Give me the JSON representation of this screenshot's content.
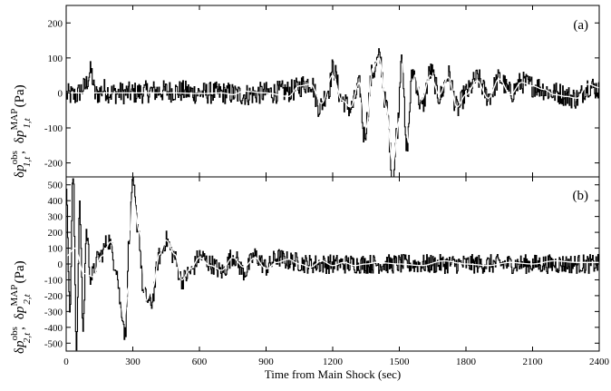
{
  "chart_data": [
    {
      "type": "line",
      "panel_label": "(a)",
      "ylabel_parts": {
        "delta": "δ",
        "p": "p",
        "sup_obs": "obs",
        "sub_obs": "1,t",
        "comma": ",",
        "sup_map": "MAP",
        "sub_map": "1,t",
        "unit": "(Pa)"
      },
      "ylim": [
        -240,
        250
      ],
      "yticks": [
        -200,
        -100,
        0,
        100,
        200
      ],
      "xlim": [
        0,
        2400
      ],
      "series": [
        {
          "role": "observed (black, noisy)",
          "color": "#000000",
          "points": [
            [
              0,
              -5
            ],
            [
              40,
              -8
            ],
            [
              80,
              15
            ],
            [
              110,
              60
            ],
            [
              130,
              -5
            ],
            [
              170,
              10
            ],
            [
              200,
              0
            ],
            [
              300,
              0
            ],
            [
              400,
              5
            ],
            [
              500,
              5
            ],
            [
              600,
              0
            ],
            [
              700,
              0
            ],
            [
              800,
              -5
            ],
            [
              900,
              0
            ],
            [
              1000,
              5
            ],
            [
              1100,
              30
            ],
            [
              1140,
              -40
            ],
            [
              1180,
              10
            ],
            [
              1200,
              70
            ],
            [
              1240,
              -20
            ],
            [
              1280,
              -45
            ],
            [
              1320,
              20
            ],
            [
              1340,
              -120
            ],
            [
              1380,
              60
            ],
            [
              1410,
              100
            ],
            [
              1440,
              -40
            ],
            [
              1470,
              -240
            ],
            [
              1490,
              -100
            ],
            [
              1510,
              120
            ],
            [
              1530,
              -160
            ],
            [
              1560,
              60
            ],
            [
              1600,
              -40
            ],
            [
              1640,
              60
            ],
            [
              1680,
              -10
            ],
            [
              1720,
              50
            ],
            [
              1760,
              -45
            ],
            [
              1800,
              0
            ],
            [
              1850,
              40
            ],
            [
              1900,
              -10
            ],
            [
              1950,
              40
            ],
            [
              2000,
              0
            ],
            [
              2050,
              30
            ],
            [
              2100,
              20
            ],
            [
              2200,
              0
            ],
            [
              2300,
              -15
            ],
            [
              2350,
              20
            ],
            [
              2400,
              10
            ]
          ]
        },
        {
          "role": "MAP estimate (white)",
          "color": "#ffffff",
          "points": [
            [
              0,
              0
            ],
            [
              100,
              0
            ],
            [
              150,
              0
            ],
            [
              200,
              0
            ],
            [
              300,
              0
            ],
            [
              400,
              0
            ],
            [
              500,
              0
            ],
            [
              600,
              -2
            ],
            [
              700,
              0
            ],
            [
              750,
              -5
            ],
            [
              800,
              5
            ],
            [
              900,
              0
            ],
            [
              1000,
              -10
            ],
            [
              1050,
              20
            ],
            [
              1100,
              25
            ],
            [
              1150,
              -30
            ],
            [
              1200,
              50
            ],
            [
              1240,
              -20
            ],
            [
              1280,
              -40
            ],
            [
              1320,
              30
            ],
            [
              1350,
              -100
            ],
            [
              1380,
              70
            ],
            [
              1410,
              100
            ],
            [
              1440,
              -40
            ],
            [
              1470,
              -200
            ],
            [
              1500,
              -80
            ],
            [
              1520,
              110
            ],
            [
              1540,
              -140
            ],
            [
              1570,
              50
            ],
            [
              1600,
              -20
            ],
            [
              1640,
              50
            ],
            [
              1680,
              -5
            ],
            [
              1720,
              45
            ],
            [
              1760,
              -40
            ],
            [
              1800,
              -5
            ],
            [
              1850,
              35
            ],
            [
              1900,
              -15
            ],
            [
              1950,
              40
            ],
            [
              2000,
              -5
            ],
            [
              2050,
              30
            ],
            [
              2100,
              20
            ],
            [
              2150,
              10
            ],
            [
              2200,
              -5
            ],
            [
              2250,
              -10
            ],
            [
              2300,
              -15
            ],
            [
              2350,
              25
            ],
            [
              2400,
              15
            ]
          ]
        }
      ]
    },
    {
      "type": "line",
      "panel_label": "(b)",
      "ylabel_parts": {
        "delta": "δ",
        "p": "p",
        "sup_obs": "obs",
        "sub_obs": "2,t",
        "comma": ",",
        "sup_map": "MAP",
        "sub_map": "2,t",
        "unit": "(Pa)"
      },
      "ylim": [
        -550,
        550
      ],
      "yticks": [
        -500,
        -400,
        -300,
        -200,
        -100,
        0,
        100,
        200,
        300,
        400,
        500
      ],
      "xlim": [
        0,
        2400
      ],
      "series": [
        {
          "role": "observed (black, noisy)",
          "color": "#000000",
          "points": [
            [
              0,
              500
            ],
            [
              15,
              -300
            ],
            [
              30,
              550
            ],
            [
              45,
              -500
            ],
            [
              60,
              350
            ],
            [
              75,
              -400
            ],
            [
              90,
              200
            ],
            [
              110,
              -80
            ],
            [
              150,
              50
            ],
            [
              190,
              150
            ],
            [
              220,
              0
            ],
            [
              250,
              -300
            ],
            [
              265,
              -450
            ],
            [
              280,
              100
            ],
            [
              300,
              500
            ],
            [
              320,
              250
            ],
            [
              350,
              -200
            ],
            [
              380,
              -250
            ],
            [
              420,
              50
            ],
            [
              450,
              150
            ],
            [
              480,
              60
            ],
            [
              520,
              -100
            ],
            [
              560,
              -50
            ],
            [
              600,
              50
            ],
            [
              650,
              0
            ],
            [
              700,
              -50
            ],
            [
              750,
              50
            ],
            [
              800,
              -50
            ],
            [
              850,
              50
            ],
            [
              900,
              -20
            ],
            [
              950,
              40
            ],
            [
              1000,
              20
            ],
            [
              1100,
              0
            ],
            [
              1200,
              0
            ],
            [
              1300,
              0
            ],
            [
              1400,
              0
            ],
            [
              1500,
              0
            ],
            [
              1600,
              0
            ],
            [
              1700,
              0
            ],
            [
              1800,
              0
            ],
            [
              1900,
              0
            ],
            [
              2000,
              0
            ],
            [
              2100,
              0
            ],
            [
              2200,
              0
            ],
            [
              2300,
              0
            ],
            [
              2400,
              0
            ]
          ]
        },
        {
          "role": "MAP estimate (white)",
          "color": "#ffffff",
          "points": [
            [
              0,
              50
            ],
            [
              40,
              100
            ],
            [
              80,
              -60
            ],
            [
              120,
              -80
            ],
            [
              160,
              50
            ],
            [
              200,
              140
            ],
            [
              230,
              60
            ],
            [
              260,
              -350
            ],
            [
              280,
              -150
            ],
            [
              300,
              420
            ],
            [
              330,
              200
            ],
            [
              360,
              -230
            ],
            [
              390,
              -150
            ],
            [
              420,
              60
            ],
            [
              450,
              150
            ],
            [
              490,
              60
            ],
            [
              520,
              -100
            ],
            [
              560,
              -30
            ],
            [
              600,
              40
            ],
            [
              650,
              -10
            ],
            [
              700,
              -40
            ],
            [
              750,
              40
            ],
            [
              800,
              -20
            ],
            [
              850,
              40
            ],
            [
              900,
              -30
            ],
            [
              950,
              10
            ],
            [
              1000,
              30
            ],
            [
              1050,
              0
            ],
            [
              1100,
              -20
            ],
            [
              1150,
              20
            ],
            [
              1200,
              -10
            ],
            [
              1250,
              10
            ],
            [
              1300,
              -10
            ],
            [
              1350,
              0
            ],
            [
              1400,
              10
            ],
            [
              1500,
              0
            ],
            [
              1600,
              -10
            ],
            [
              1700,
              20
            ],
            [
              1800,
              0
            ],
            [
              1900,
              -10
            ],
            [
              2000,
              10
            ],
            [
              2100,
              0
            ],
            [
              2200,
              20
            ],
            [
              2300,
              10
            ],
            [
              2400,
              10
            ]
          ]
        }
      ]
    }
  ],
  "shared_x": {
    "label": "Time from Main Shock (sec)",
    "ticks": [
      0,
      300,
      600,
      900,
      1200,
      1500,
      1800,
      2100,
      2400
    ]
  }
}
